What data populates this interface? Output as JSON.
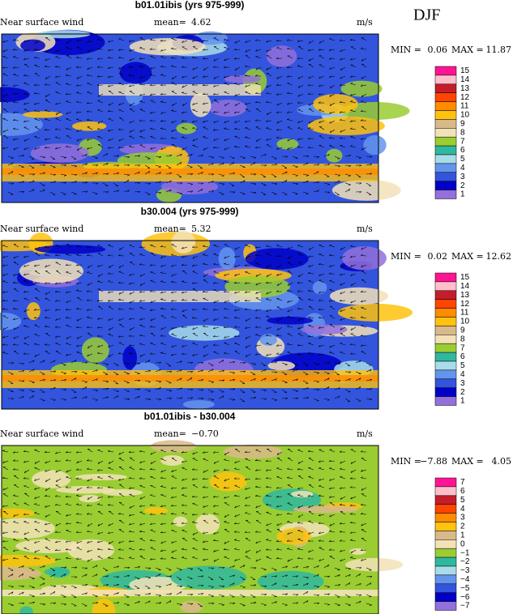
{
  "season": "DJF",
  "panels": [
    {
      "title": "b01.01ibis (yrs 975-999)",
      "variable": "Near surface wind",
      "mean_label": "mean=",
      "mean": "4.62",
      "units": "m/s",
      "min_label": "MIN =",
      "min": "0.06",
      "max_label": "MAX =",
      "max": "11.87",
      "levels": [
        "15",
        "14",
        "13",
        "12",
        "11",
        "10",
        "9",
        "8",
        "7",
        "6",
        "5",
        "4",
        "3",
        "2",
        "1"
      ]
    },
    {
      "title": "b30.004 (yrs 975-999)",
      "variable": "Near surface wind",
      "mean_label": "mean=",
      "mean": "5.32",
      "units": "m/s",
      "min_label": "MIN =",
      "min": "0.02",
      "max_label": "MAX =",
      "max": "12.62",
      "levels": [
        "15",
        "14",
        "13",
        "12",
        "11",
        "10",
        "9",
        "8",
        "7",
        "6",
        "5",
        "4",
        "3",
        "2",
        "1"
      ]
    },
    {
      "title": "b01.01ibis - b30.004",
      "variable": "Near surface wind",
      "mean_label": "mean=",
      "mean": "−0.70",
      "units": "m/s",
      "min_label": "MIN =",
      "min": "−7.88",
      "max_label": "MAX =",
      "max": "4.05",
      "levels": [
        "7",
        "6",
        "5",
        "4",
        "3",
        "2",
        "1",
        "0",
        "−1",
        "−2",
        "−3",
        "−4",
        "−5",
        "−6",
        "−7"
      ]
    }
  ],
  "colorbar_colors": [
    "#ff1493",
    "#ffc0cb",
    "#c41e2a",
    "#ff4500",
    "#ff8c00",
    "#ffc20e",
    "#d9b98a",
    "#f3e2b8",
    "#9acd32",
    "#2fb8a0",
    "#a8dce8",
    "#6495ed",
    "#3355dd",
    "#0000c8",
    "#9370db"
  ]
}
